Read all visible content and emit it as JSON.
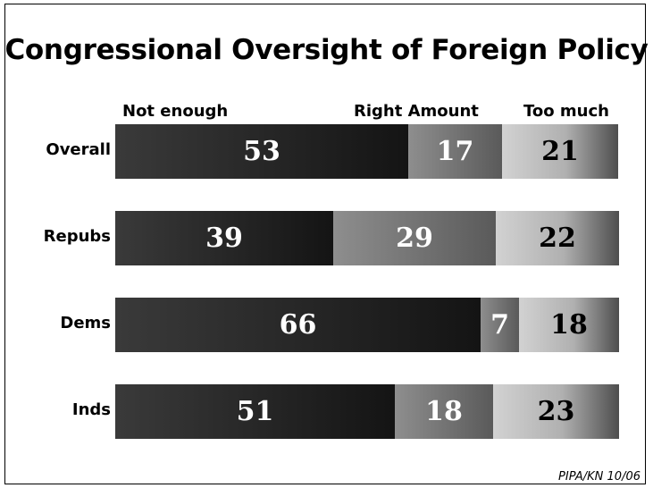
{
  "chart_data": {
    "type": "bar",
    "orientation": "horizontal",
    "stacked": true,
    "title": "Congressional Oversight of Foreign Policy",
    "categories": [
      "Overall",
      "Repubs",
      "Dems",
      "Inds"
    ],
    "series": [
      {
        "name": "Not enough",
        "values": [
          53,
          39,
          66,
          51
        ],
        "color": "#222222",
        "label_color": "#ffffff"
      },
      {
        "name": "Right Amount",
        "values": [
          17,
          29,
          7,
          18
        ],
        "color": "#777777",
        "label_color": "#ffffff"
      },
      {
        "name": "Too much",
        "values": [
          21,
          22,
          18,
          23
        ],
        "color": "#bbbbbb",
        "label_color": "#000000"
      }
    ],
    "legend_placement": "top",
    "grid": false
  },
  "source": "PIPA/KN 10/06"
}
